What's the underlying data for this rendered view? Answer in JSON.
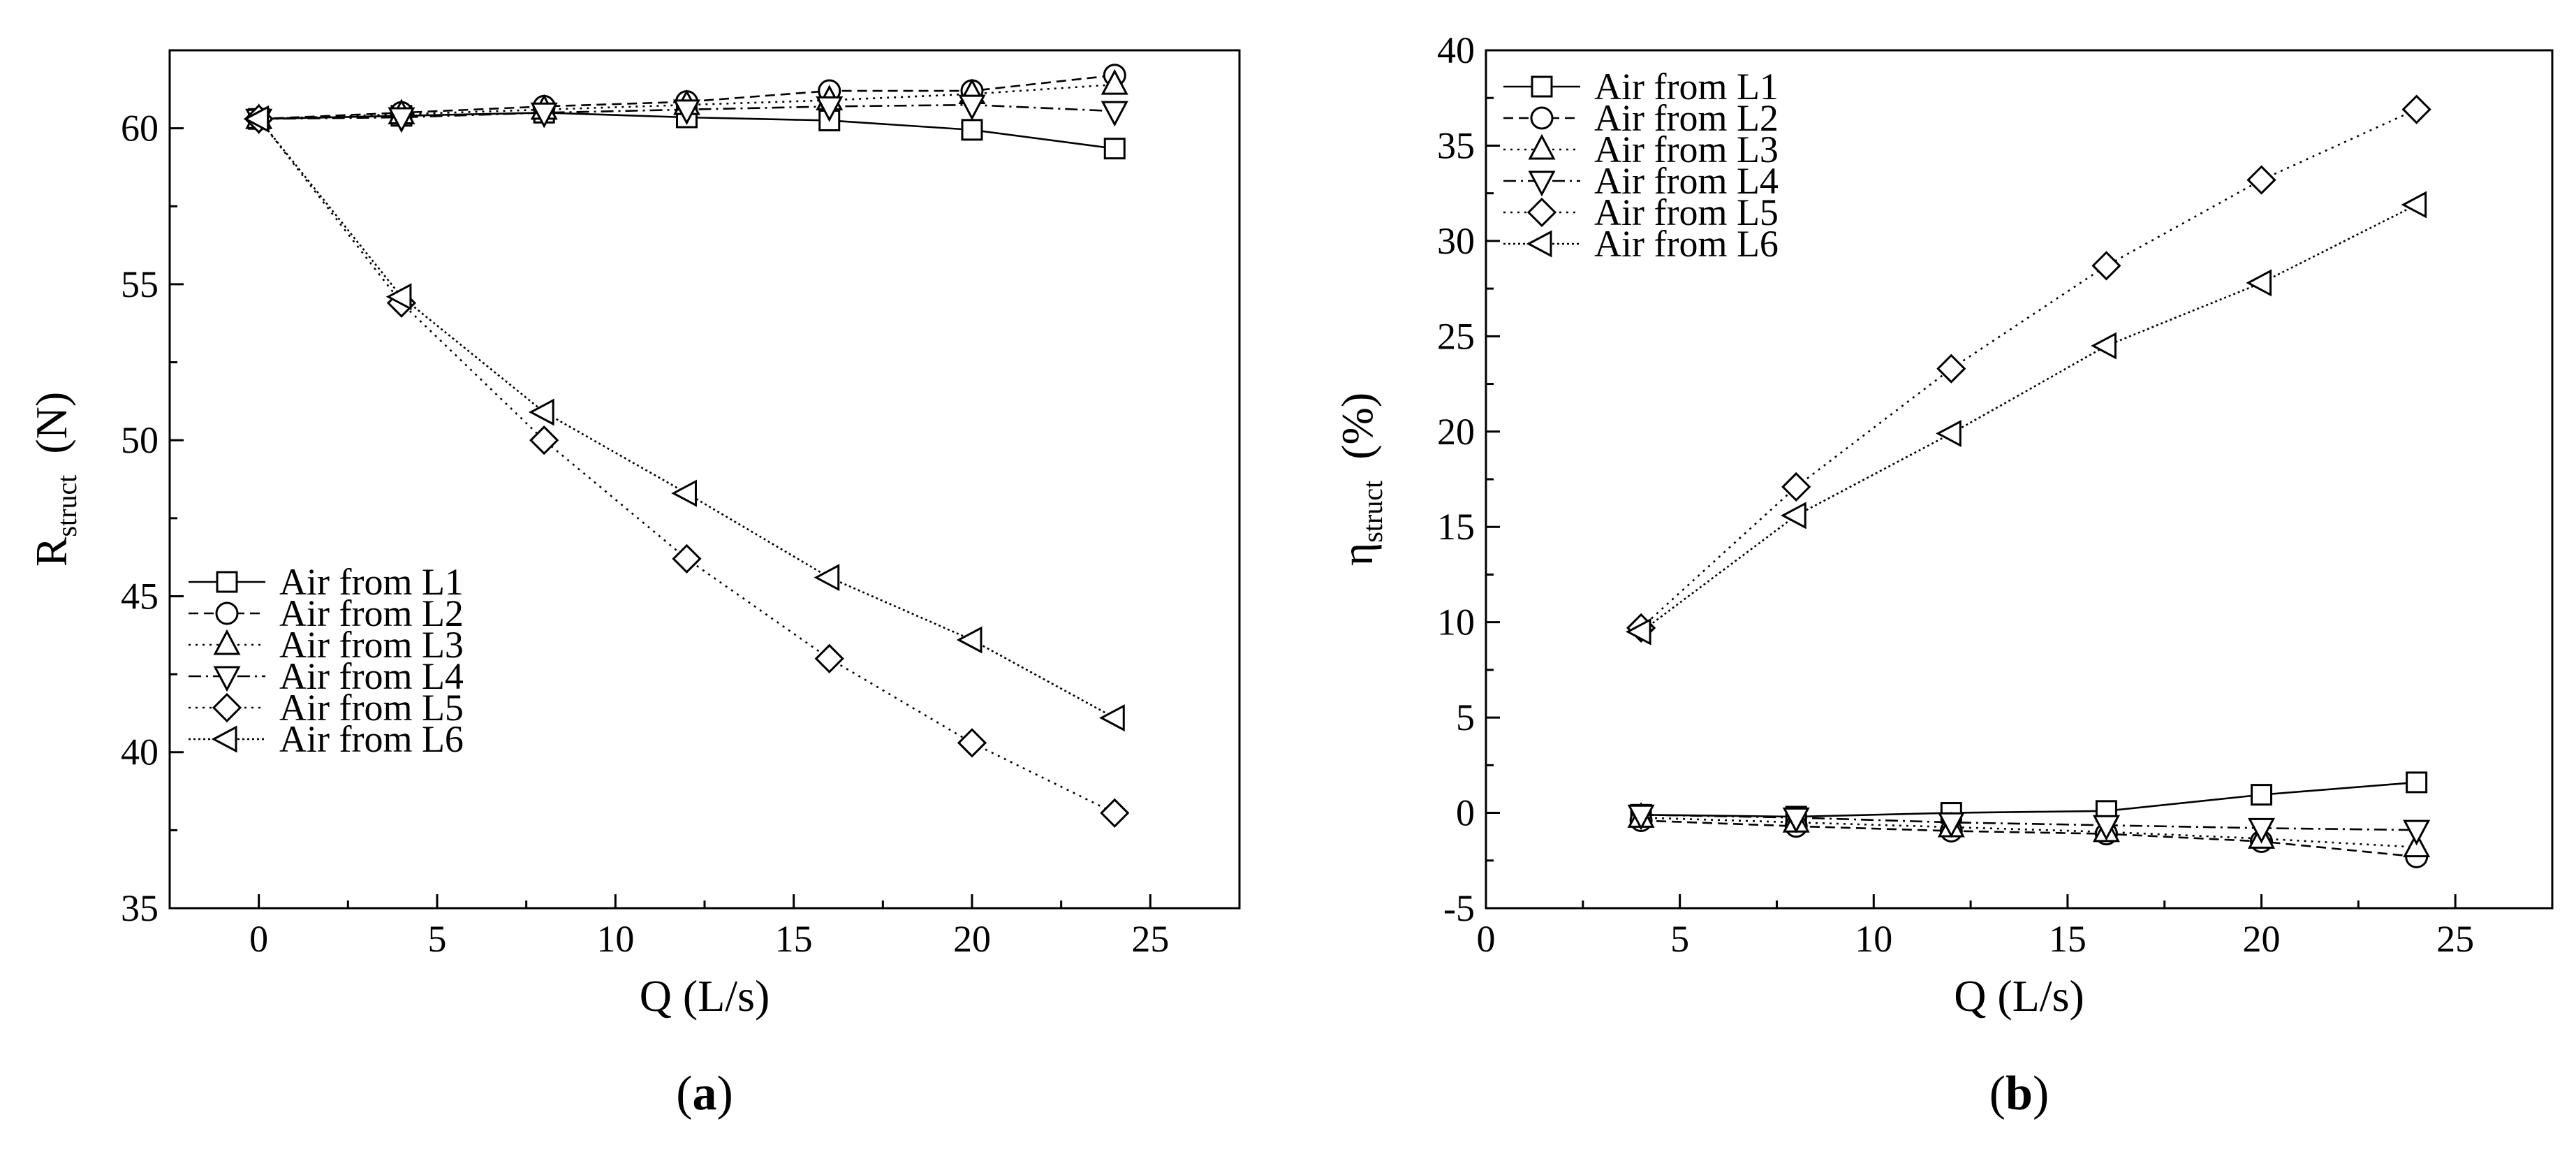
{
  "chart_data": [
    {
      "type": "line",
      "panel_label": "(a)",
      "xlabel": "Q (L/s)",
      "ylabel": {
        "main": "R",
        "sub": "struct",
        "unit": "(N)"
      },
      "xlim": [
        -2.5,
        27.5
      ],
      "ylim": [
        35,
        62.5
      ],
      "xticks": [
        0,
        5,
        10,
        15,
        20,
        25
      ],
      "yticks": [
        35,
        40,
        45,
        50,
        55,
        60
      ],
      "grid": false,
      "legend_position": "lower-left",
      "x": [
        0,
        4,
        8,
        12,
        16,
        20,
        24
      ],
      "series": [
        {
          "name": "Air from L1",
          "marker": "square",
          "dash": "solid",
          "values": [
            60.3,
            60.4,
            60.5,
            60.35,
            60.25,
            59.95,
            59.35
          ]
        },
        {
          "name": "Air from L2",
          "marker": "circle",
          "dash": "dashed",
          "values": [
            60.3,
            60.5,
            60.7,
            60.85,
            61.2,
            61.2,
            61.7
          ]
        },
        {
          "name": "Air from L3",
          "marker": "triangle-up",
          "dash": "dotted",
          "values": [
            60.3,
            60.45,
            60.6,
            60.75,
            60.9,
            61.1,
            61.4
          ]
        },
        {
          "name": "Air from L4",
          "marker": "triangle-down",
          "dash": "dashdot",
          "values": [
            60.3,
            60.35,
            60.5,
            60.6,
            60.7,
            60.75,
            60.55
          ]
        },
        {
          "name": "Air from L5",
          "marker": "diamond",
          "dash": "dotted",
          "values": [
            60.3,
            54.4,
            50.0,
            46.2,
            43.0,
            40.3,
            38.05
          ]
        },
        {
          "name": "Air from L6",
          "marker": "triangle-left",
          "dash": "densedot",
          "values": [
            60.3,
            54.6,
            50.9,
            48.3,
            45.6,
            43.6,
            41.1
          ]
        }
      ]
    },
    {
      "type": "line",
      "panel_label": "(b)",
      "xlabel": "Q (L/s)",
      "ylabel": {
        "main": "η",
        "sub": "struct",
        "unit": "(%)"
      },
      "xlim": [
        0,
        27.5
      ],
      "ylim": [
        -5,
        40
      ],
      "xticks": [
        0,
        5,
        10,
        15,
        20,
        25
      ],
      "yticks": [
        -5,
        0,
        5,
        10,
        15,
        20,
        25,
        30,
        35,
        40
      ],
      "grid": false,
      "legend_position": "top-left",
      "x": [
        4,
        8,
        12,
        16,
        20,
        24
      ],
      "series": [
        {
          "name": "Air from L1",
          "marker": "square",
          "dash": "solid",
          "values": [
            -0.1,
            -0.2,
            0.0,
            0.1,
            0.95,
            1.6
          ]
        },
        {
          "name": "Air from L2",
          "marker": "circle",
          "dash": "dashed",
          "values": [
            -0.4,
            -0.7,
            -0.95,
            -1.1,
            -1.5,
            -2.3
          ]
        },
        {
          "name": "Air from L3",
          "marker": "triangle-up",
          "dash": "dotted",
          "values": [
            -0.25,
            -0.5,
            -0.75,
            -1.0,
            -1.35,
            -1.8
          ]
        },
        {
          "name": "Air from L4",
          "marker": "triangle-down",
          "dash": "dashdot",
          "values": [
            -0.1,
            -0.25,
            -0.5,
            -0.65,
            -0.8,
            -0.9
          ]
        },
        {
          "name": "Air from L5",
          "marker": "diamond",
          "dash": "dotted",
          "values": [
            9.7,
            17.1,
            23.3,
            28.7,
            33.2,
            36.9
          ]
        },
        {
          "name": "Air from L6",
          "marker": "triangle-left",
          "dash": "densedot",
          "values": [
            9.5,
            15.6,
            19.9,
            24.5,
            27.8,
            31.9
          ]
        }
      ]
    }
  ]
}
